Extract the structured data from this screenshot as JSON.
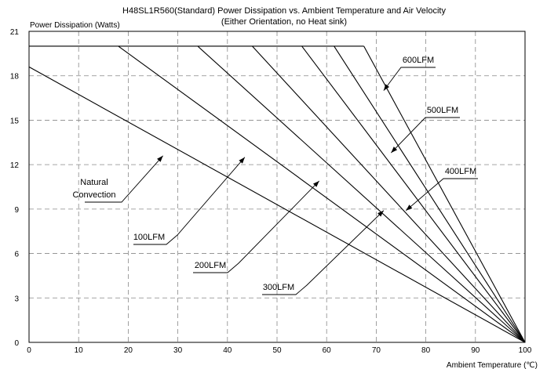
{
  "chart_data": {
    "type": "line",
    "title": "H48SL1R560(Standard) Power Dissipation vs. Ambient Temperature and Air Velocity",
    "subtitle": "(Either Orientation, no Heat sink)",
    "ylabel": "Power Dissipation (Watts)",
    "xlabel": "Ambient Temperature (℃)",
    "xlim": [
      0,
      100
    ],
    "ylim": [
      0,
      21
    ],
    "x_ticks": [
      "0",
      "10",
      "20",
      "30",
      "40",
      "50",
      "60",
      "70",
      "80",
      "90",
      "100"
    ],
    "y_ticks": [
      "0",
      "3",
      "6",
      "9",
      "12",
      "15",
      "18",
      "21"
    ],
    "grid": true,
    "series": [
      {
        "name": "Natural Convection",
        "x": [
          0,
          100
        ],
        "y": [
          18.6,
          0
        ]
      },
      {
        "name": "100LFM",
        "x": [
          18,
          100
        ],
        "y": [
          20,
          0
        ]
      },
      {
        "name": "200LFM",
        "x": [
          34,
          100
        ],
        "y": [
          20,
          0
        ]
      },
      {
        "name": "300LFM",
        "x": [
          45,
          100
        ],
        "y": [
          20,
          0
        ]
      },
      {
        "name": "400LFM",
        "x": [
          55,
          100
        ],
        "y": [
          20,
          0
        ]
      },
      {
        "name": "500LFM",
        "x": [
          61.5,
          100
        ],
        "y": [
          20,
          0
        ]
      },
      {
        "name": "600LFM",
        "x": [
          67.5,
          100
        ],
        "y": [
          20,
          0
        ]
      }
    ],
    "flat_limit": {
      "x": [
        0,
        67.5
      ],
      "y": [
        20,
        20
      ]
    },
    "annotations": [
      {
        "label": "Natural Convection",
        "lines": [
          "Natural",
          "Convection"
        ],
        "target": [
          27,
          12.6
        ]
      },
      {
        "label": "100LFM",
        "target": [
          43.5,
          12.5
        ]
      },
      {
        "label": "200LFM",
        "target": [
          58.5,
          10.9
        ]
      },
      {
        "label": "300LFM",
        "target": [
          71.5,
          8.9
        ]
      },
      {
        "label": "400LFM",
        "target": [
          76,
          8.9
        ]
      },
      {
        "label": "500LFM",
        "target": [
          73,
          12.8
        ]
      },
      {
        "label": "600LFM",
        "target": [
          71.5,
          17
        ]
      }
    ]
  }
}
